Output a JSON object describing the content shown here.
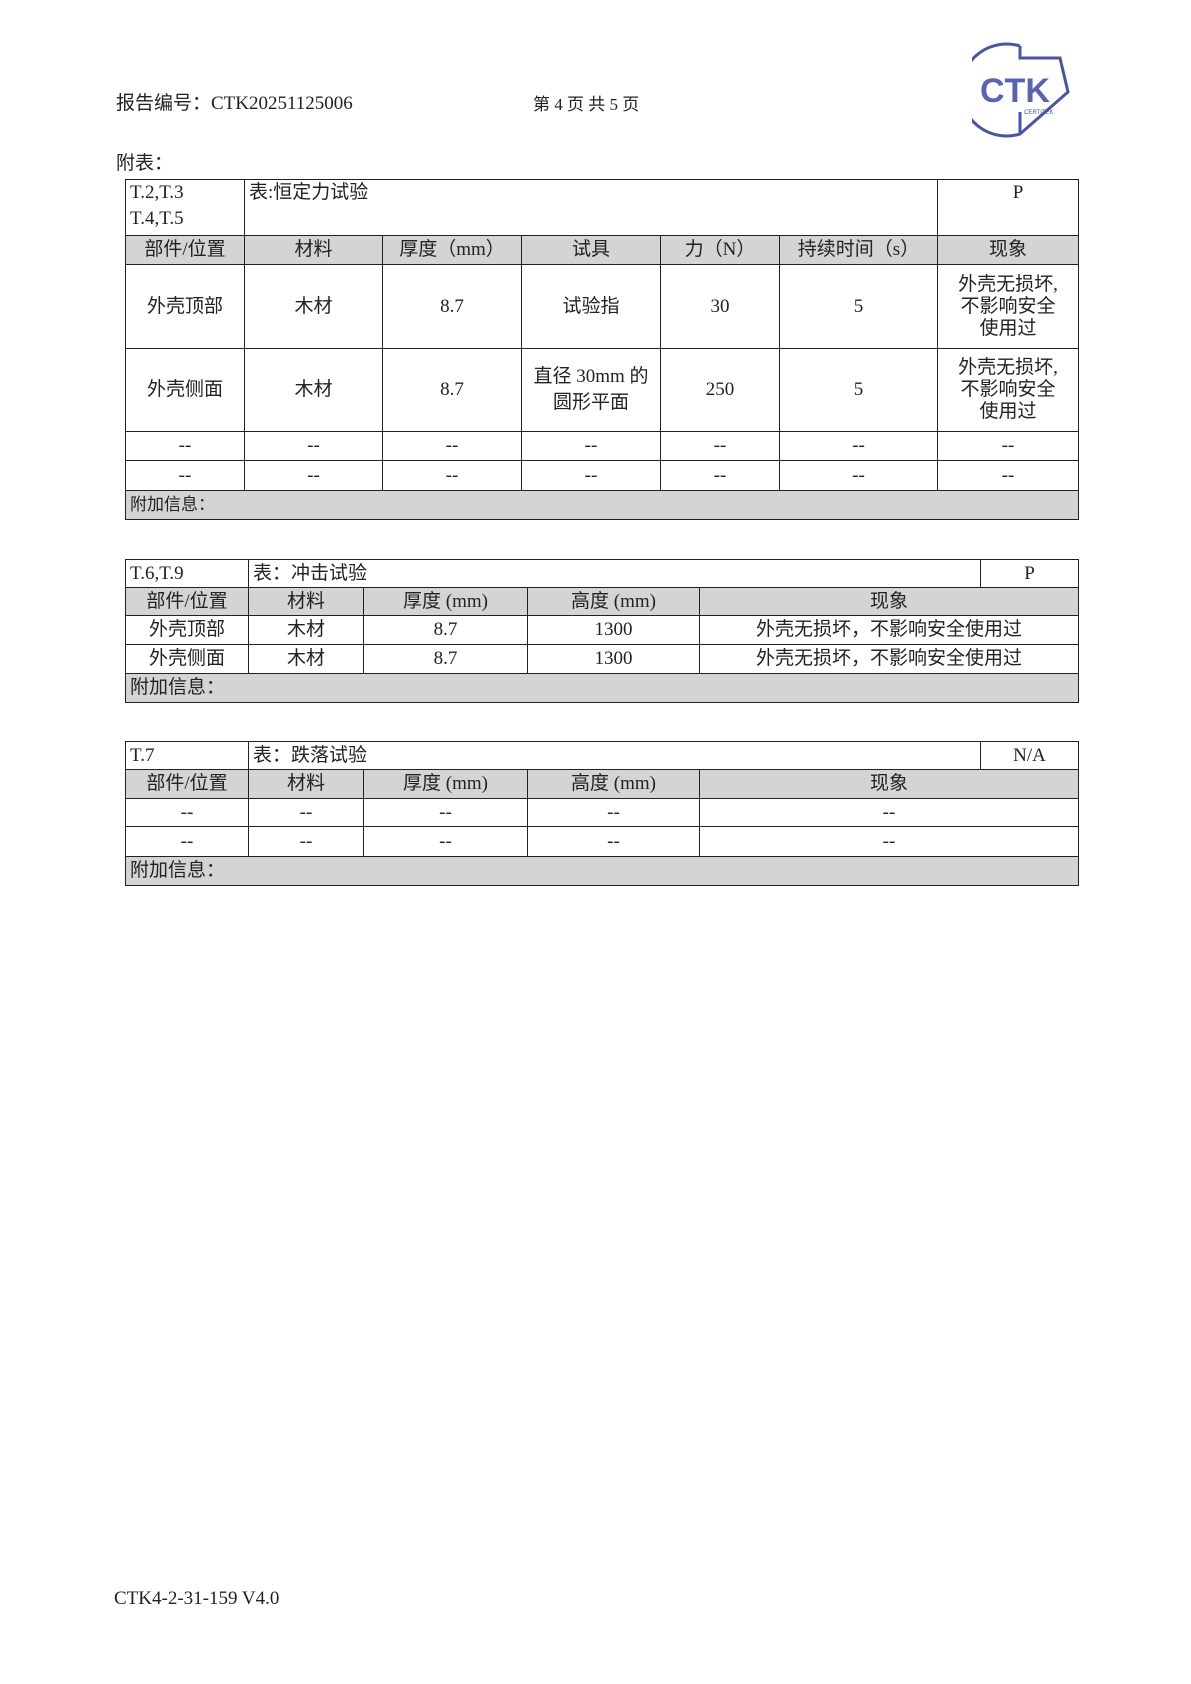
{
  "header": {
    "report_no": "报告编号：CTK20251125006",
    "page": "第 4 页 共 5 页",
    "logo_text": "CTK",
    "logo_sub": "CERTITEK",
    "logo_color": "#4a55a2"
  },
  "appendix_label": "附表：",
  "table1": {
    "clauses": [
      "T.2,T.3",
      "T.4,T.5"
    ],
    "title": "表:恒定力试验",
    "verdict": "P",
    "columns": [
      "部件/位置",
      "材料",
      "厚度（mm）",
      "试具",
      "力（N）",
      "持续时间（s）",
      "现象"
    ],
    "rows": [
      {
        "part": "外壳顶部",
        "material": "木材",
        "thickness": "8.7",
        "tool": [
          "试验指"
        ],
        "force": "30",
        "duration": "5",
        "result": [
          "外壳无损坏,",
          "不影响安全",
          "使用过"
        ]
      },
      {
        "part": "外壳侧面",
        "material": "木材",
        "thickness": "8.7",
        "tool": [
          "直径 30mm 的",
          "圆形平面"
        ],
        "force": "250",
        "duration": "5",
        "result": [
          "外壳无损坏,",
          "不影响安全",
          "使用过"
        ]
      },
      {
        "part": "--",
        "material": "--",
        "thickness": "--",
        "tool": [
          "--"
        ],
        "force": "--",
        "duration": "--",
        "result": [
          "--"
        ]
      },
      {
        "part": "--",
        "material": "--",
        "thickness": "--",
        "tool": [
          "--"
        ],
        "force": "--",
        "duration": "--",
        "result": [
          "--"
        ]
      }
    ],
    "additional": "附加信息："
  },
  "table2": {
    "clauses": "T.6,T.9",
    "title": "表：冲击试验",
    "verdict": "P",
    "columns": [
      "部件/位置",
      "材料",
      "厚度 (mm)",
      "高度 (mm)",
      "现象"
    ],
    "rows": [
      [
        "外壳顶部",
        "木材",
        "8.7",
        "1300",
        "外壳无损坏，不影响安全使用过"
      ],
      [
        "外壳侧面",
        "木材",
        "8.7",
        "1300",
        "外壳无损坏，不影响安全使用过"
      ]
    ],
    "additional": "附加信息："
  },
  "table3": {
    "clauses": "T.7",
    "title": "表：跌落试验",
    "verdict": "N/A",
    "columns": [
      "部件/位置",
      "材料",
      "厚度 (mm)",
      "高度 (mm)",
      "现象"
    ],
    "rows": [
      [
        "--",
        "--",
        "--",
        "--",
        "--"
      ],
      [
        "--",
        "--",
        "--",
        "--",
        "--"
      ]
    ],
    "additional": "附加信息："
  },
  "footer": "CTK4-2-31-159 V4.0"
}
